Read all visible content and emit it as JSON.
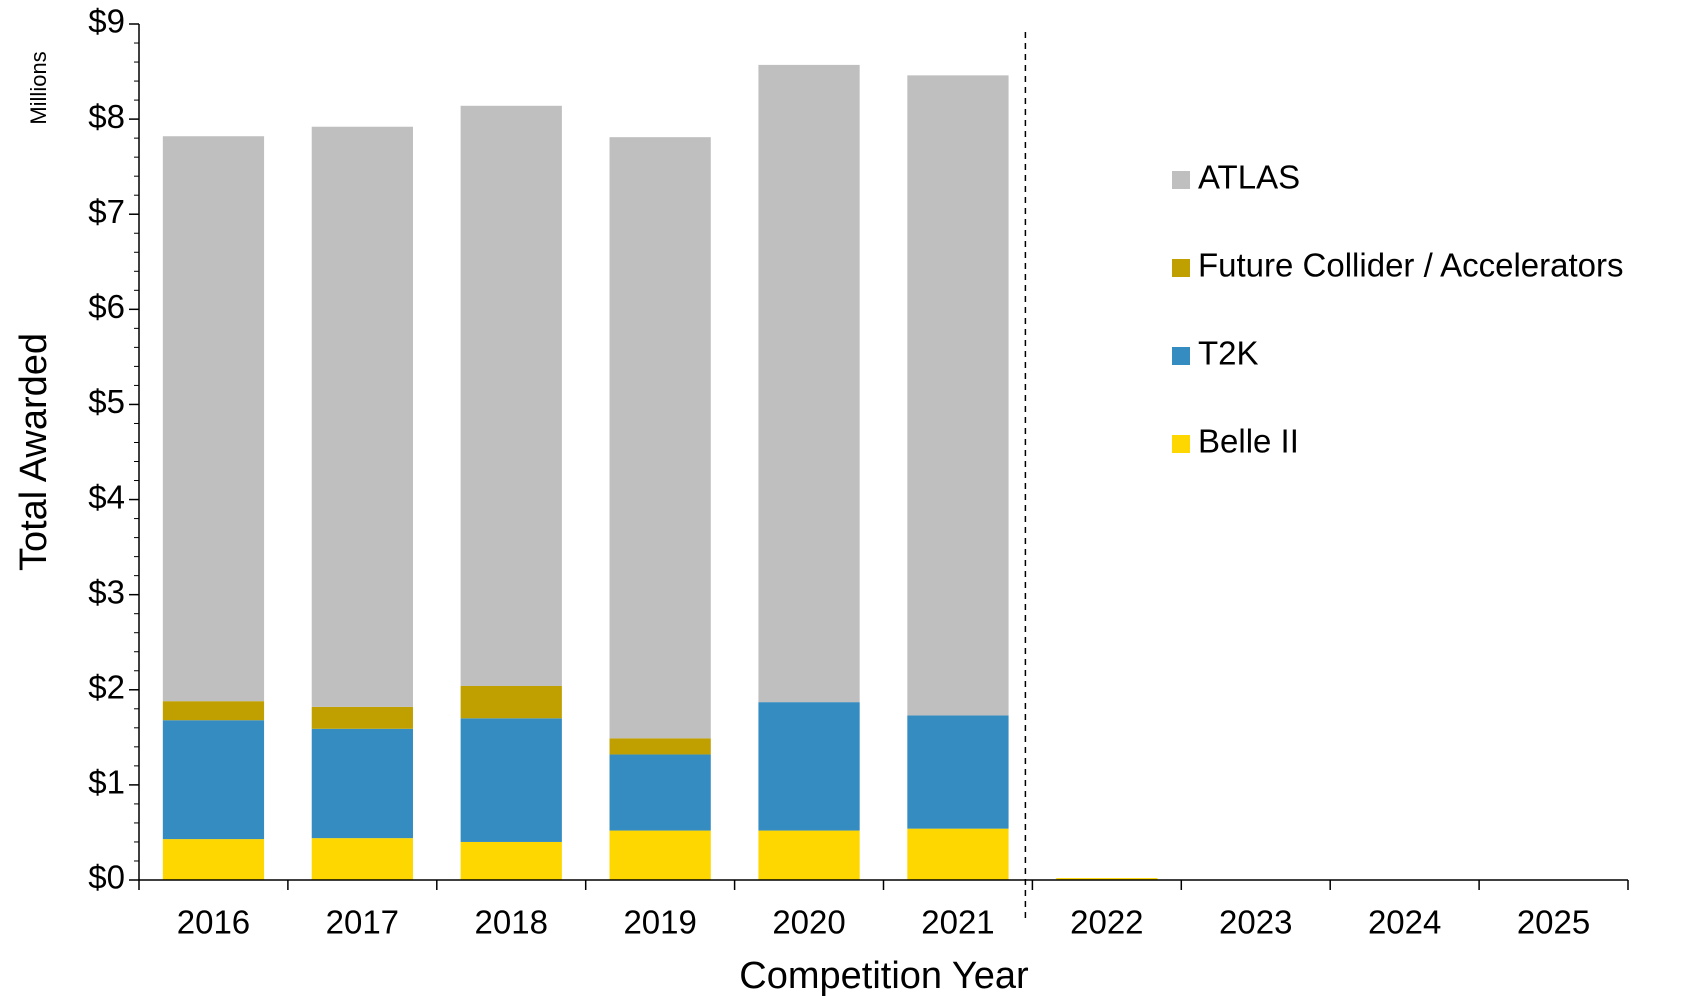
{
  "chart_data": {
    "type": "stacked_bar",
    "y_label": "Total Awarded",
    "x_label": "Competition Year",
    "unit_label": "Millions",
    "categories": [
      "2016",
      "2017",
      "2018",
      "2019",
      "2020",
      "2021",
      "2022",
      "2023",
      "2024",
      "2025"
    ],
    "series": [
      {
        "name": "Belle II",
        "color": "#ffd700",
        "values": [
          0.43,
          0.44,
          0.4,
          0.52,
          0.52,
          0.54,
          0.02,
          0,
          0,
          0
        ]
      },
      {
        "name": "T2K",
        "color": "#358cc0",
        "values": [
          1.25,
          1.15,
          1.3,
          0.8,
          1.35,
          1.19,
          0,
          0,
          0,
          0
        ]
      },
      {
        "name": "Future Collider / Accelerators",
        "color": "#c0a000",
        "values": [
          0.2,
          0.23,
          0.34,
          0.17,
          0,
          0,
          0,
          0,
          0,
          0
        ]
      },
      {
        "name": "ATLAS",
        "color": "#bfbfbf",
        "values": [
          5.94,
          6.1,
          6.1,
          6.32,
          6.7,
          6.73,
          0,
          0,
          0,
          0
        ]
      }
    ],
    "ylim": [
      0,
      9
    ],
    "yticks": [
      {
        "value": 0,
        "label": "$0"
      },
      {
        "value": 1,
        "label": "$1"
      },
      {
        "value": 2,
        "label": "$2"
      },
      {
        "value": 3,
        "label": "$3"
      },
      {
        "value": 4,
        "label": "$4"
      },
      {
        "value": 5,
        "label": "$5"
      },
      {
        "value": 6,
        "label": "$6"
      },
      {
        "value": 7,
        "label": "$7"
      },
      {
        "value": 8,
        "label": "$8"
      },
      {
        "value": 9,
        "label": "$9"
      }
    ],
    "legend": "right"
  }
}
